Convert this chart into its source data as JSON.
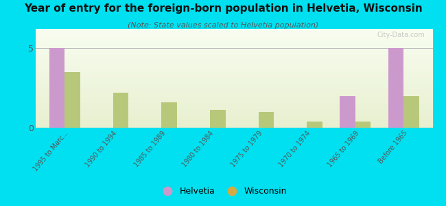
{
  "title": "Year of entry for the foreign-born population in Helvetia, Wisconsin",
  "subtitle": "(Note: State values scaled to Helvetia population)",
  "categories": [
    "1995 to Marc...",
    "1990 to 1994",
    "1985 to 1989",
    "1980 to 1984",
    "1975 to 1979",
    "1970 to 1974",
    "1965 to 1969",
    "Before 1965"
  ],
  "helvetia_values": [
    5,
    0,
    0,
    0,
    0,
    0,
    2,
    5
  ],
  "wisconsin_values": [
    3.5,
    2.2,
    1.6,
    1.1,
    1.0,
    0.4,
    0.4,
    2.0
  ],
  "helvetia_color": "#cc99cc",
  "wisconsin_color": "#b8c87a",
  "background_color": "#00e0f0",
  "ylim": [
    0,
    6.2
  ],
  "yticks": [
    0,
    5
  ],
  "bar_width": 0.32,
  "legend_labels": [
    "Helvetia",
    "Wisconsin"
  ],
  "legend_marker_helvetia": "#cc99cc",
  "legend_marker_wisconsin": "#d4aa44",
  "watermark": "City-Data.com"
}
